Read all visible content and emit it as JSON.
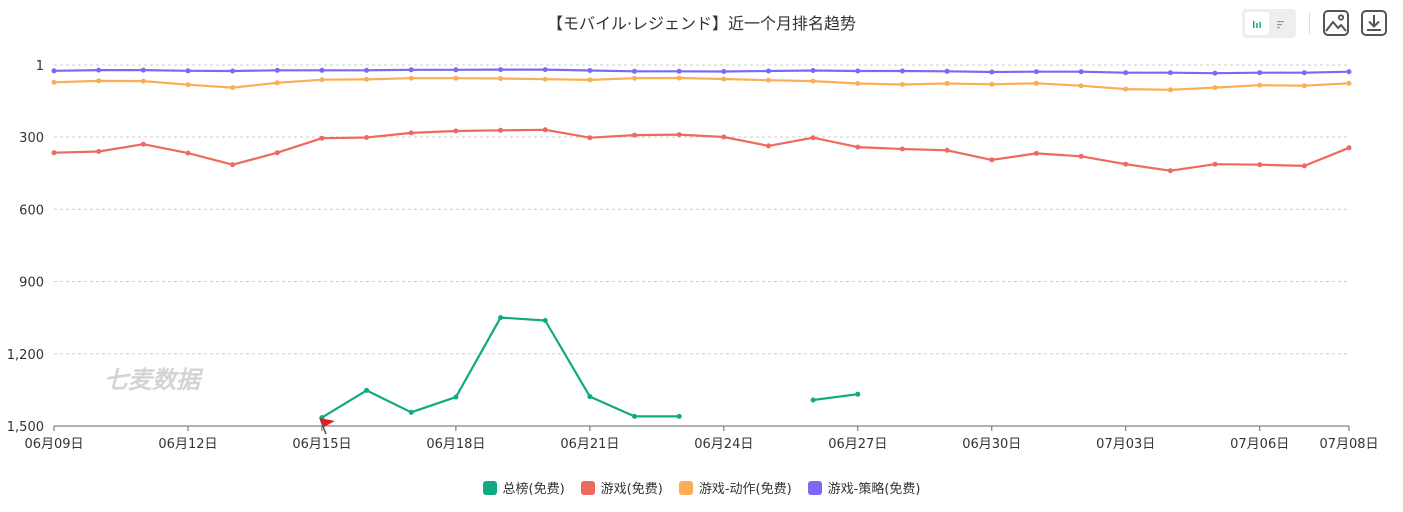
{
  "title": "【モバイル·レジェンド】近一个月排名趋势",
  "toolbar": {
    "line_view": "line-chart-icon",
    "table_view": "table-view-icon",
    "image": "save-image-icon",
    "download": "download-icon"
  },
  "watermark": "七麦数据",
  "chart_data": {
    "type": "line",
    "x": [
      "06月09日",
      "06月10日",
      "06月11日",
      "06月12日",
      "06月13日",
      "06月14日",
      "06月15日",
      "06月16日",
      "06月17日",
      "06月18日",
      "06月19日",
      "06月20日",
      "06月21日",
      "06月22日",
      "06月23日",
      "06月24日",
      "06月25日",
      "06月26日",
      "06月27日",
      "06月28日",
      "06月29日",
      "06月30日",
      "07月01日",
      "07月02日",
      "07月03日",
      "07月04日",
      "07月05日",
      "07月06日",
      "07月07日",
      "07月08日"
    ],
    "tick_labels": [
      "06月09日",
      "06月12日",
      "06月15日",
      "06月18日",
      "06月21日",
      "06月24日",
      "06月27日",
      "06月30日",
      "07月03日",
      "07月06日",
      "07月08日"
    ],
    "y_ticks": [
      1,
      300,
      600,
      900,
      1200,
      1500
    ],
    "y_tick_labels": [
      "1",
      "300",
      "600",
      "900",
      "1,200",
      "1,500"
    ],
    "ylim": [
      1,
      1500
    ],
    "y_inverted": true,
    "grid": true,
    "legend_position": "bottom",
    "series": [
      {
        "name": "总榜(免费)",
        "color": "#10a982",
        "values": [
          null,
          null,
          null,
          null,
          null,
          null,
          1465,
          1352,
          1443,
          1380,
          1050,
          1062,
          1378,
          1460,
          1460,
          null,
          null,
          1392,
          1368,
          null,
          null,
          null,
          null,
          null,
          null,
          null,
          null,
          null,
          null,
          null
        ]
      },
      {
        "name": "游戏(免费)",
        "color": "#ee6a5e",
        "values": [
          365,
          360,
          330,
          367,
          415,
          365,
          305,
          302,
          283,
          275,
          272,
          270,
          303,
          292,
          290,
          300,
          337,
          303,
          342,
          350,
          355,
          395,
          368,
          380,
          413,
          440,
          413,
          415,
          420,
          345
        ]
      },
      {
        "name": "游戏-动作(免费)",
        "color": "#fbae55",
        "values": [
          73,
          67,
          68,
          83,
          95,
          75,
          62,
          61,
          56,
          56,
          57,
          60,
          63,
          56,
          55,
          59,
          64,
          68,
          78,
          82,
          78,
          81,
          77,
          87,
          101,
          104,
          95,
          85,
          87,
          77
        ]
      },
      {
        "name": "游戏-策略(免费)",
        "color": "#7b69f5",
        "values": [
          25,
          22,
          22,
          25,
          26,
          23,
          23,
          23,
          21,
          21,
          20,
          20,
          24,
          27,
          27,
          28,
          26,
          24,
          26,
          26,
          27,
          30,
          29,
          29,
          33,
          33,
          35,
          33,
          33,
          29
        ]
      }
    ],
    "marker": {
      "type": "flag",
      "x": "06月15日",
      "color": "#e02020"
    }
  }
}
